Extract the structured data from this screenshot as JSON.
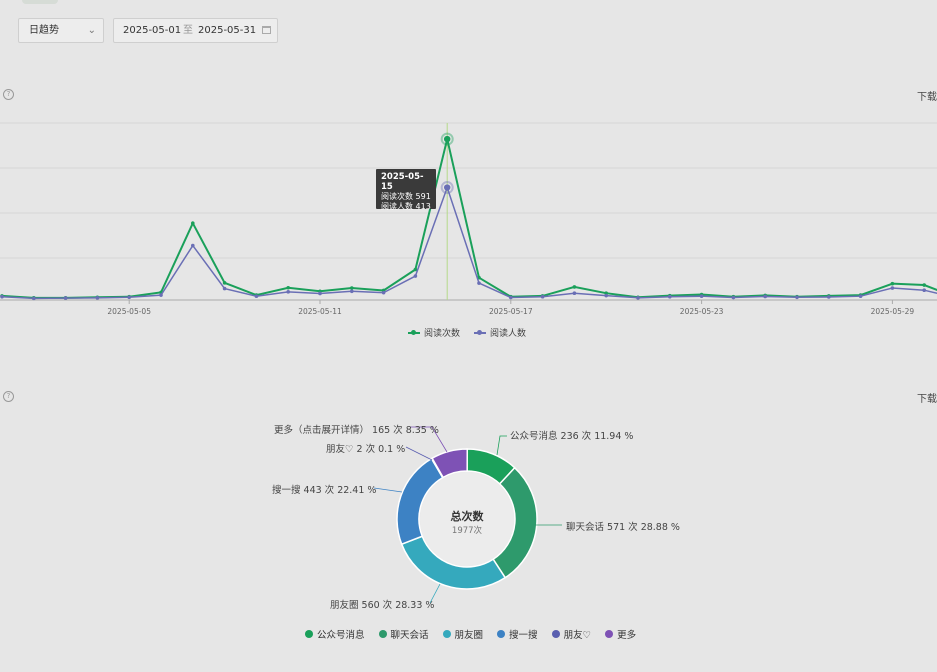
{
  "filter": {
    "trend_select": "日趋势",
    "date_start": "2025-05-01",
    "date_sep": "至",
    "date_end": "2025-05-31"
  },
  "download_label": "下载",
  "help_icon_text": "?",
  "line_chart": {
    "tooltip": {
      "date": "2025-05-15",
      "row1": "阅读次数 591",
      "row2": "阅读人数 413"
    },
    "x_tick_labels": [
      "2025-05-05",
      "2025-05-11",
      "2025-05-17",
      "2025-05-23",
      "2025-05-29"
    ],
    "legend": [
      "阅读次数",
      "阅读人数"
    ],
    "colors": {
      "reads": "#1aa05a",
      "readers": "#6a6fb5",
      "guide": "#b5d98a"
    }
  },
  "chart_data": [
    {
      "type": "line",
      "x": [
        "2025-05-01",
        "2025-05-02",
        "2025-05-03",
        "2025-05-04",
        "2025-05-05",
        "2025-05-06",
        "2025-05-07",
        "2025-05-08",
        "2025-05-09",
        "2025-05-10",
        "2025-05-11",
        "2025-05-12",
        "2025-05-13",
        "2025-05-14",
        "2025-05-15",
        "2025-05-16",
        "2025-05-17",
        "2025-05-18",
        "2025-05-19",
        "2025-05-20",
        "2025-05-21",
        "2025-05-22",
        "2025-05-23",
        "2025-05-24",
        "2025-05-25",
        "2025-05-26",
        "2025-05-27",
        "2025-05-28",
        "2025-05-29",
        "2025-05-30",
        "2025-05-31"
      ],
      "series": [
        {
          "name": "阅读次数",
          "values": [
            15,
            8,
            8,
            10,
            12,
            28,
            282,
            63,
            18,
            45,
            32,
            44,
            35,
            112,
            591,
            82,
            12,
            15,
            48,
            25,
            10,
            16,
            20,
            12,
            17,
            12,
            15,
            18,
            60,
            55,
            10
          ]
        },
        {
          "name": "阅读人数",
          "values": [
            12,
            6,
            7,
            8,
            10,
            18,
            200,
            42,
            14,
            30,
            24,
            32,
            27,
            88,
            413,
            62,
            9,
            12,
            25,
            16,
            8,
            12,
            14,
            9,
            13,
            10,
            11,
            14,
            44,
            36,
            8
          ]
        }
      ],
      "ylim": [
        0,
        650
      ],
      "grid": true
    },
    {
      "type": "pie",
      "title": "总次数",
      "total_label": "1977次",
      "slices": [
        {
          "name": "公众号消息",
          "value": 236,
          "label": "公众号消息 236 次 11.94 %",
          "color": "#1aa05a"
        },
        {
          "name": "聊天会话",
          "value": 571,
          "label": "聊天会话 571 次 28.88 %",
          "color": "#2e9a6c"
        },
        {
          "name": "朋友圈",
          "value": 560,
          "label": "朋友圈 560 次 28.33 %",
          "color": "#35a9bd"
        },
        {
          "name": "搜一搜",
          "value": 443,
          "label": "搜一搜 443 次 22.41 %",
          "color": "#3d82c4"
        },
        {
          "name": "朋友♡",
          "value": 2,
          "label": "朋友♡ 2 次 0.1 %",
          "color": "#5a5fb0"
        },
        {
          "name": "更多",
          "value": 165,
          "label": "更多（点击展开详情） 165 次 8.35 %",
          "color": "#7e52b5"
        }
      ]
    }
  ]
}
